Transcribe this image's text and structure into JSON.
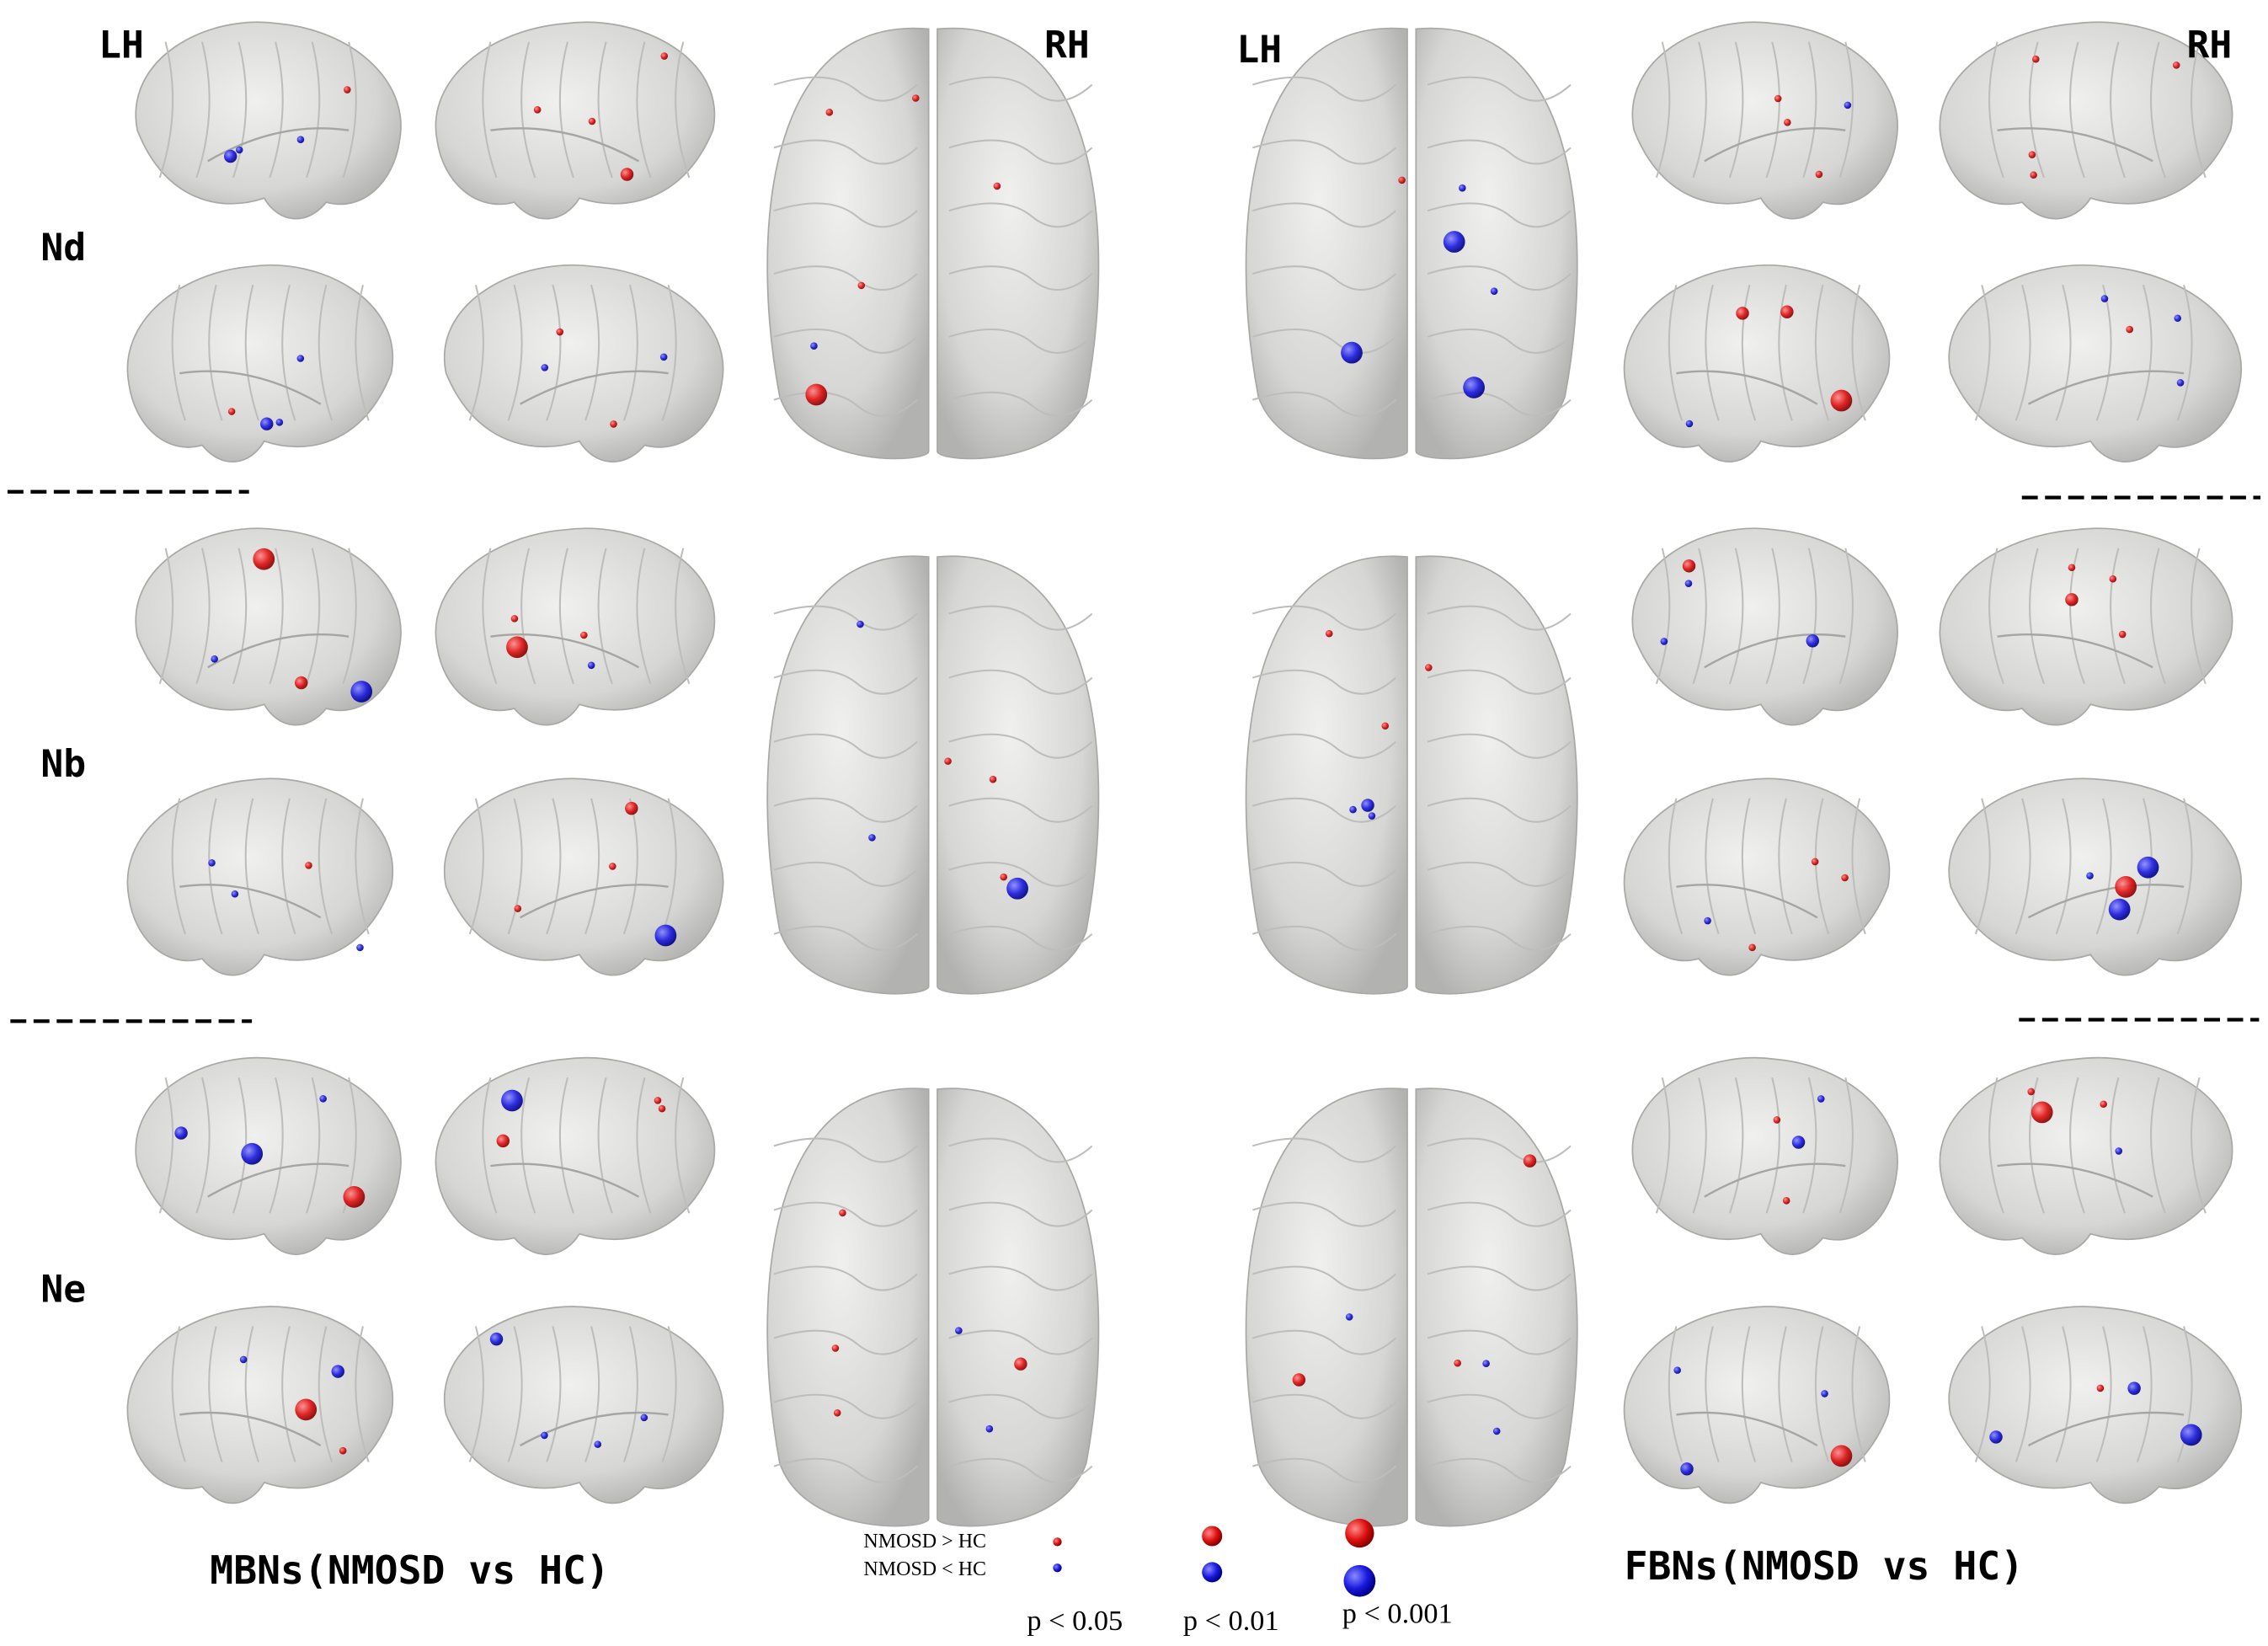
{
  "labels": {
    "mbn_left": "LH",
    "mbn_right": "RH",
    "fbn_left": "LH",
    "fbn_right": "RH"
  },
  "rows": [
    "Nd",
    "Nb",
    "Ne"
  ],
  "captions": {
    "mbn": "MBNs(NMOSD vs HC)",
    "fbn": "FBNs(NMOSD vs HC)"
  },
  "legend": {
    "increase": "NMOSD > HC",
    "decrease": "NMOSD < HC",
    "levels": [
      "p < 0.05",
      "p < 0.01",
      "p < 0.001"
    ]
  }
}
